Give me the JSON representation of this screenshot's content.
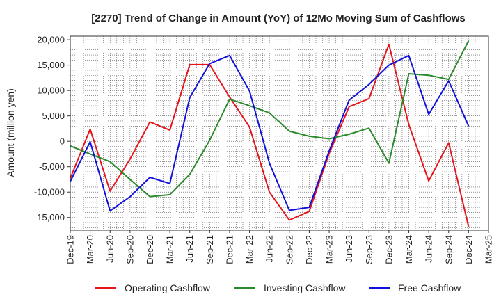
{
  "chart_data": {
    "type": "line",
    "title": "[2270]  Trend of Change in Amount (YoY) of 12Mo Moving Sum of Cashflows",
    "xlabel": "",
    "ylabel": "Amount (million yen)",
    "ylim": [
      -17500,
      20700
    ],
    "yticks": [
      -15000,
      -10000,
      -5000,
      0,
      5000,
      10000,
      15000,
      20000
    ],
    "ytick_labels": [
      "-15,000",
      "-10,000",
      "-5,000",
      "0",
      "5,000",
      "10,000",
      "15,000",
      "20,000"
    ],
    "categories": [
      "Dec-19",
      "Mar-20",
      "Jun-20",
      "Sep-20",
      "Dec-20",
      "Mar-21",
      "Jun-21",
      "Sep-21",
      "Dec-21",
      "Mar-22",
      "Jun-22",
      "Sep-22",
      "Dec-22",
      "Mar-23",
      "Jun-23",
      "Sep-23",
      "Dec-23",
      "Mar-24",
      "Jun-24",
      "Sep-24",
      "Dec-24",
      "Mar-25"
    ],
    "legend_position": "bottom",
    "grid": true,
    "series": [
      {
        "name": "Operating Cashflow",
        "color": "#e8141b",
        "values": [
          -7300,
          2400,
          -9800,
          -3500,
          3800,
          2200,
          15100,
          15100,
          8700,
          2800,
          -10000,
          -15500,
          -13800,
          -2400,
          6800,
          8400,
          19100,
          3300,
          -7800,
          -300,
          -16800,
          null
        ]
      },
      {
        "name": "Investing Cashflow",
        "color": "#2a8a2a",
        "values": [
          -900,
          -2500,
          -4000,
          -7500,
          -10900,
          -10500,
          -6500,
          200,
          8300,
          7000,
          5600,
          2000,
          1000,
          500,
          1400,
          2600,
          -4300,
          13300,
          13000,
          12200,
          19800,
          null
        ]
      },
      {
        "name": "Free Cashflow",
        "color": "#1010dd",
        "values": [
          -7900,
          -100,
          -13700,
          -10900,
          -7100,
          -8300,
          8600,
          15300,
          16900,
          9900,
          -4300,
          -13600,
          -13000,
          -1900,
          8100,
          11200,
          15000,
          16900,
          5300,
          11900,
          3000,
          null
        ]
      }
    ]
  }
}
